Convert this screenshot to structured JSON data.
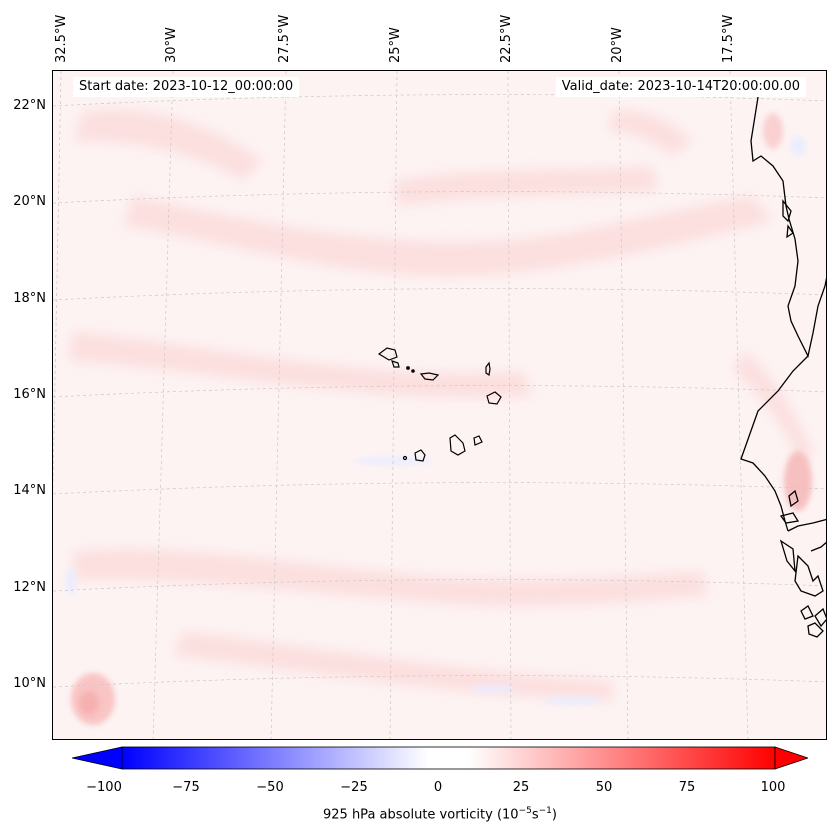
{
  "start_date": "Start date: 2023-10-12_00:00:00",
  "valid_date": "Valid_date: 2023-10-14T20:00:00.00",
  "longitude_labels": [
    "32.5°W",
    "30°W",
    "27.5°W",
    "25°W",
    "22.5°W",
    "20°W",
    "17.5°W"
  ],
  "latitude_labels": [
    "22°N",
    "20°N",
    "18°N",
    "16°N",
    "14°N",
    "12°N",
    "10°N"
  ],
  "colorbar": {
    "ticks": [
      "−100",
      "−75",
      "−50",
      "−25",
      "0",
      "25",
      "50",
      "75",
      "100"
    ],
    "title_prefix": "925 hPa absolute vorticity (10",
    "title_exp1": "−5",
    "title_mid": "s",
    "title_exp2": "−1",
    "title_suffix": ")",
    "min": -100,
    "max": 100,
    "min_color": "#0000ff",
    "mid_color": "#ffffff",
    "max_color": "#ff0000"
  },
  "colors": {
    "background_field": "#fdf3f3",
    "positive_band": "#fde2e2",
    "negative_band": "#eef0ff",
    "coastline": "#000000",
    "gridline": "#c8c8c8"
  }
}
